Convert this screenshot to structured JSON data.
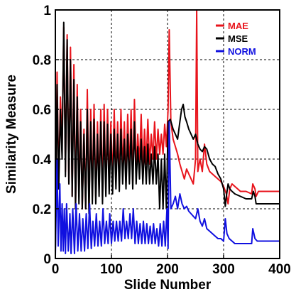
{
  "chart_data": {
    "type": "line",
    "title": "",
    "xlabel": "Slide Number",
    "ylabel": "Similarity Measure",
    "xlim": [
      0,
      400
    ],
    "ylim": [
      0,
      1
    ],
    "x_ticks": [
      0,
      100,
      200,
      300,
      400
    ],
    "y_ticks": [
      0,
      0.2,
      0.4,
      0.6,
      0.8,
      1
    ],
    "y_tick_labels": [
      "0",
      "0.2",
      "0.4",
      "0.6",
      "0.8",
      "1"
    ],
    "grid": true,
    "grid_style": "dashed",
    "legend_position": "top-right",
    "series": [
      {
        "name": "MAE",
        "color": "#e8141c",
        "points": [
          [
            0,
            0.05
          ],
          [
            3,
            0.75
          ],
          [
            6,
            0.3
          ],
          [
            9,
            0.65
          ],
          [
            12,
            0.45
          ],
          [
            15,
            0.93
          ],
          [
            18,
            0.35
          ],
          [
            21,
            0.9
          ],
          [
            24,
            0.3
          ],
          [
            27,
            0.85
          ],
          [
            30,
            0.25
          ],
          [
            33,
            0.78
          ],
          [
            36,
            0.2
          ],
          [
            39,
            0.7
          ],
          [
            42,
            0.25
          ],
          [
            45,
            0.6
          ],
          [
            48,
            0.2
          ],
          [
            51,
            0.52
          ],
          [
            54,
            0.2
          ],
          [
            57,
            0.68
          ],
          [
            60,
            0.2
          ],
          [
            63,
            0.6
          ],
          [
            66,
            0.25
          ],
          [
            69,
            0.62
          ],
          [
            72,
            0.25
          ],
          [
            75,
            0.55
          ],
          [
            78,
            0.28
          ],
          [
            81,
            0.6
          ],
          [
            84,
            0.25
          ],
          [
            87,
            0.62
          ],
          [
            90,
            0.28
          ],
          [
            93,
            0.6
          ],
          [
            96,
            0.3
          ],
          [
            99,
            0.55
          ],
          [
            102,
            0.3
          ],
          [
            105,
            0.6
          ],
          [
            108,
            0.32
          ],
          [
            111,
            0.55
          ],
          [
            114,
            0.3
          ],
          [
            117,
            0.6
          ],
          [
            120,
            0.35
          ],
          [
            123,
            0.55
          ],
          [
            126,
            0.3
          ],
          [
            129,
            0.58
          ],
          [
            132,
            0.35
          ],
          [
            135,
            0.6
          ],
          [
            138,
            0.3
          ],
          [
            141,
            0.64
          ],
          [
            144,
            0.35
          ],
          [
            147,
            0.5
          ],
          [
            150,
            0.38
          ],
          [
            153,
            0.58
          ],
          [
            156,
            0.35
          ],
          [
            159,
            0.52
          ],
          [
            162,
            0.38
          ],
          [
            165,
            0.56
          ],
          [
            168,
            0.38
          ],
          [
            171,
            0.5
          ],
          [
            174,
            0.4
          ],
          [
            177,
            0.55
          ],
          [
            180,
            0.4
          ],
          [
            183,
            0.52
          ],
          [
            186,
            0.42
          ],
          [
            189,
            0.5
          ],
          [
            192,
            0.42
          ],
          [
            195,
            0.54
          ],
          [
            198,
            0.45
          ],
          [
            201,
            0.6
          ],
          [
            203,
            0.92
          ],
          [
            206,
            0.55
          ],
          [
            210,
            0.48
          ],
          [
            214,
            0.45
          ],
          [
            218,
            0.42
          ],
          [
            222,
            0.38
          ],
          [
            226,
            0.35
          ],
          [
            230,
            0.32
          ],
          [
            234,
            0.36
          ],
          [
            238,
            0.34
          ],
          [
            242,
            0.32
          ],
          [
            246,
            0.3
          ],
          [
            250,
            0.4
          ],
          [
            252,
            1.0
          ],
          [
            254,
            0.35
          ],
          [
            258,
            0.4
          ],
          [
            262,
            0.35
          ],
          [
            266,
            0.46
          ],
          [
            270,
            0.38
          ],
          [
            275,
            0.35
          ],
          [
            280,
            0.34
          ],
          [
            285,
            0.33
          ],
          [
            290,
            0.32
          ],
          [
            295,
            0.31
          ],
          [
            300,
            0.29
          ],
          [
            305,
            0.26
          ],
          [
            308,
            0.22
          ],
          [
            311,
            0.28
          ],
          [
            315,
            0.3
          ],
          [
            320,
            0.29
          ],
          [
            325,
            0.28
          ],
          [
            330,
            0.27
          ],
          [
            340,
            0.27
          ],
          [
            350,
            0.26
          ],
          [
            352,
            0.3
          ],
          [
            356,
            0.28
          ],
          [
            358,
            0.25
          ],
          [
            362,
            0.27
          ],
          [
            370,
            0.27
          ],
          [
            385,
            0.27
          ],
          [
            400,
            0.27
          ]
        ]
      },
      {
        "name": "MSE",
        "color": "#000000",
        "points": [
          [
            0,
            0.03
          ],
          [
            3,
            0.7
          ],
          [
            6,
            0.28
          ],
          [
            9,
            0.6
          ],
          [
            12,
            0.4
          ],
          [
            15,
            0.95
          ],
          [
            18,
            0.33
          ],
          [
            21,
            0.88
          ],
          [
            24,
            0.3
          ],
          [
            27,
            0.8
          ],
          [
            30,
            0.25
          ],
          [
            33,
            0.72
          ],
          [
            36,
            0.2
          ],
          [
            39,
            0.65
          ],
          [
            42,
            0.22
          ],
          [
            45,
            0.55
          ],
          [
            48,
            0.2
          ],
          [
            51,
            0.5
          ],
          [
            54,
            0.2
          ],
          [
            57,
            0.6
          ],
          [
            60,
            0.18
          ],
          [
            63,
            0.55
          ],
          [
            66,
            0.22
          ],
          [
            69,
            0.56
          ],
          [
            72,
            0.22
          ],
          [
            75,
            0.5
          ],
          [
            78,
            0.25
          ],
          [
            81,
            0.55
          ],
          [
            84,
            0.22
          ],
          [
            87,
            0.55
          ],
          [
            90,
            0.25
          ],
          [
            93,
            0.54
          ],
          [
            96,
            0.26
          ],
          [
            99,
            0.5
          ],
          [
            102,
            0.26
          ],
          [
            105,
            0.52
          ],
          [
            108,
            0.28
          ],
          [
            111,
            0.5
          ],
          [
            114,
            0.27
          ],
          [
            117,
            0.52
          ],
          [
            120,
            0.3
          ],
          [
            123,
            0.48
          ],
          [
            126,
            0.28
          ],
          [
            129,
            0.5
          ],
          [
            132,
            0.3
          ],
          [
            135,
            0.52
          ],
          [
            138,
            0.28
          ],
          [
            141,
            0.55
          ],
          [
            144,
            0.3
          ],
          [
            147,
            0.45
          ],
          [
            150,
            0.32
          ],
          [
            153,
            0.48
          ],
          [
            156,
            0.3
          ],
          [
            159,
            0.45
          ],
          [
            162,
            0.3
          ],
          [
            165,
            0.46
          ],
          [
            168,
            0.3
          ],
          [
            171,
            0.42
          ],
          [
            174,
            0.3
          ],
          [
            177,
            0.45
          ],
          [
            180,
            0.3
          ],
          [
            183,
            0.42
          ],
          [
            186,
            0.2
          ],
          [
            189,
            0.4
          ],
          [
            192,
            0.2
          ],
          [
            195,
            0.42
          ],
          [
            198,
            0.2
          ],
          [
            201,
            0.55
          ],
          [
            205,
            0.56
          ],
          [
            210,
            0.52
          ],
          [
            214,
            0.5
          ],
          [
            218,
            0.48
          ],
          [
            222,
            0.55
          ],
          [
            225,
            0.6
          ],
          [
            228,
            0.62
          ],
          [
            231,
            0.57
          ],
          [
            234,
            0.55
          ],
          [
            238,
            0.52
          ],
          [
            242,
            0.5
          ],
          [
            246,
            0.48
          ],
          [
            250,
            0.5
          ],
          [
            254,
            0.46
          ],
          [
            258,
            0.44
          ],
          [
            262,
            0.43
          ],
          [
            266,
            0.45
          ],
          [
            270,
            0.44
          ],
          [
            275,
            0.4
          ],
          [
            280,
            0.38
          ],
          [
            285,
            0.37
          ],
          [
            290,
            0.34
          ],
          [
            295,
            0.32
          ],
          [
            300,
            0.28
          ],
          [
            303,
            0.21
          ],
          [
            305,
            0.25
          ],
          [
            308,
            0.3
          ],
          [
            311,
            0.28
          ],
          [
            315,
            0.27
          ],
          [
            320,
            0.26
          ],
          [
            330,
            0.25
          ],
          [
            340,
            0.24
          ],
          [
            350,
            0.24
          ],
          [
            353,
            0.27
          ],
          [
            356,
            0.25
          ],
          [
            358,
            0.22
          ],
          [
            362,
            0.22
          ],
          [
            370,
            0.22
          ],
          [
            385,
            0.22
          ],
          [
            400,
            0.22
          ]
        ]
      },
      {
        "name": "NORM",
        "color": "#1010e0",
        "points": [
          [
            0,
            0.01
          ],
          [
            3,
            0.4
          ],
          [
            5,
            0.05
          ],
          [
            8,
            0.3
          ],
          [
            10,
            0.03
          ],
          [
            12,
            0.22
          ],
          [
            14,
            0.03
          ],
          [
            16,
            0.2
          ],
          [
            18,
            0.02
          ],
          [
            20,
            0.22
          ],
          [
            23,
            0.03
          ],
          [
            26,
            0.18
          ],
          [
            28,
            0.02
          ],
          [
            31,
            0.2
          ],
          [
            34,
            0.02
          ],
          [
            37,
            0.22
          ],
          [
            40,
            0.03
          ],
          [
            43,
            0.18
          ],
          [
            46,
            0.03
          ],
          [
            49,
            0.16
          ],
          [
            52,
            0.03
          ],
          [
            55,
            0.18
          ],
          [
            58,
            0.04
          ],
          [
            61,
            0.22
          ],
          [
            64,
            0.04
          ],
          [
            67,
            0.15
          ],
          [
            70,
            0.05
          ],
          [
            73,
            0.18
          ],
          [
            76,
            0.05
          ],
          [
            79,
            0.15
          ],
          [
            82,
            0.05
          ],
          [
            85,
            0.2
          ],
          [
            88,
            0.06
          ],
          [
            91,
            0.15
          ],
          [
            94,
            0.06
          ],
          [
            97,
            0.18
          ],
          [
            100,
            0.06
          ],
          [
            103,
            0.15
          ],
          [
            106,
            0.07
          ],
          [
            109,
            0.15
          ],
          [
            112,
            0.07
          ],
          [
            115,
            0.15
          ],
          [
            118,
            0.07
          ],
          [
            121,
            0.2
          ],
          [
            124,
            0.08
          ],
          [
            127,
            0.15
          ],
          [
            130,
            0.08
          ],
          [
            133,
            0.18
          ],
          [
            136,
            0.08
          ],
          [
            139,
            0.2
          ],
          [
            142,
            0.06
          ],
          [
            145,
            0.15
          ],
          [
            148,
            0.06
          ],
          [
            151,
            0.14
          ],
          [
            154,
            0.06
          ],
          [
            157,
            0.15
          ],
          [
            160,
            0.06
          ],
          [
            163,
            0.14
          ],
          [
            166,
            0.06
          ],
          [
            169,
            0.13
          ],
          [
            172,
            0.06
          ],
          [
            175,
            0.14
          ],
          [
            178,
            0.06
          ],
          [
            181,
            0.12
          ],
          [
            184,
            0.05
          ],
          [
            187,
            0.14
          ],
          [
            190,
            0.05
          ],
          [
            193,
            0.15
          ],
          [
            196,
            0.05
          ],
          [
            199,
            0.2
          ],
          [
            201,
            0.04
          ],
          [
            203,
            0.55
          ],
          [
            206,
            0.2
          ],
          [
            210,
            0.22
          ],
          [
            214,
            0.25
          ],
          [
            218,
            0.2
          ],
          [
            222,
            0.26
          ],
          [
            226,
            0.22
          ],
          [
            230,
            0.2
          ],
          [
            234,
            0.21
          ],
          [
            238,
            0.19
          ],
          [
            242,
            0.18
          ],
          [
            246,
            0.17
          ],
          [
            250,
            0.16
          ],
          [
            254,
            0.2
          ],
          [
            258,
            0.15
          ],
          [
            262,
            0.13
          ],
          [
            266,
            0.16
          ],
          [
            270,
            0.12
          ],
          [
            275,
            0.11
          ],
          [
            280,
            0.1
          ],
          [
            285,
            0.09
          ],
          [
            290,
            0.08
          ],
          [
            295,
            0.08
          ],
          [
            300,
            0.07
          ],
          [
            303,
            0.16
          ],
          [
            306,
            0.1
          ],
          [
            310,
            0.08
          ],
          [
            315,
            0.07
          ],
          [
            320,
            0.06
          ],
          [
            330,
            0.06
          ],
          [
            340,
            0.06
          ],
          [
            350,
            0.06
          ],
          [
            352,
            0.12
          ],
          [
            356,
            0.08
          ],
          [
            360,
            0.07
          ],
          [
            370,
            0.07
          ],
          [
            385,
            0.07
          ],
          [
            400,
            0.07
          ]
        ]
      }
    ]
  }
}
